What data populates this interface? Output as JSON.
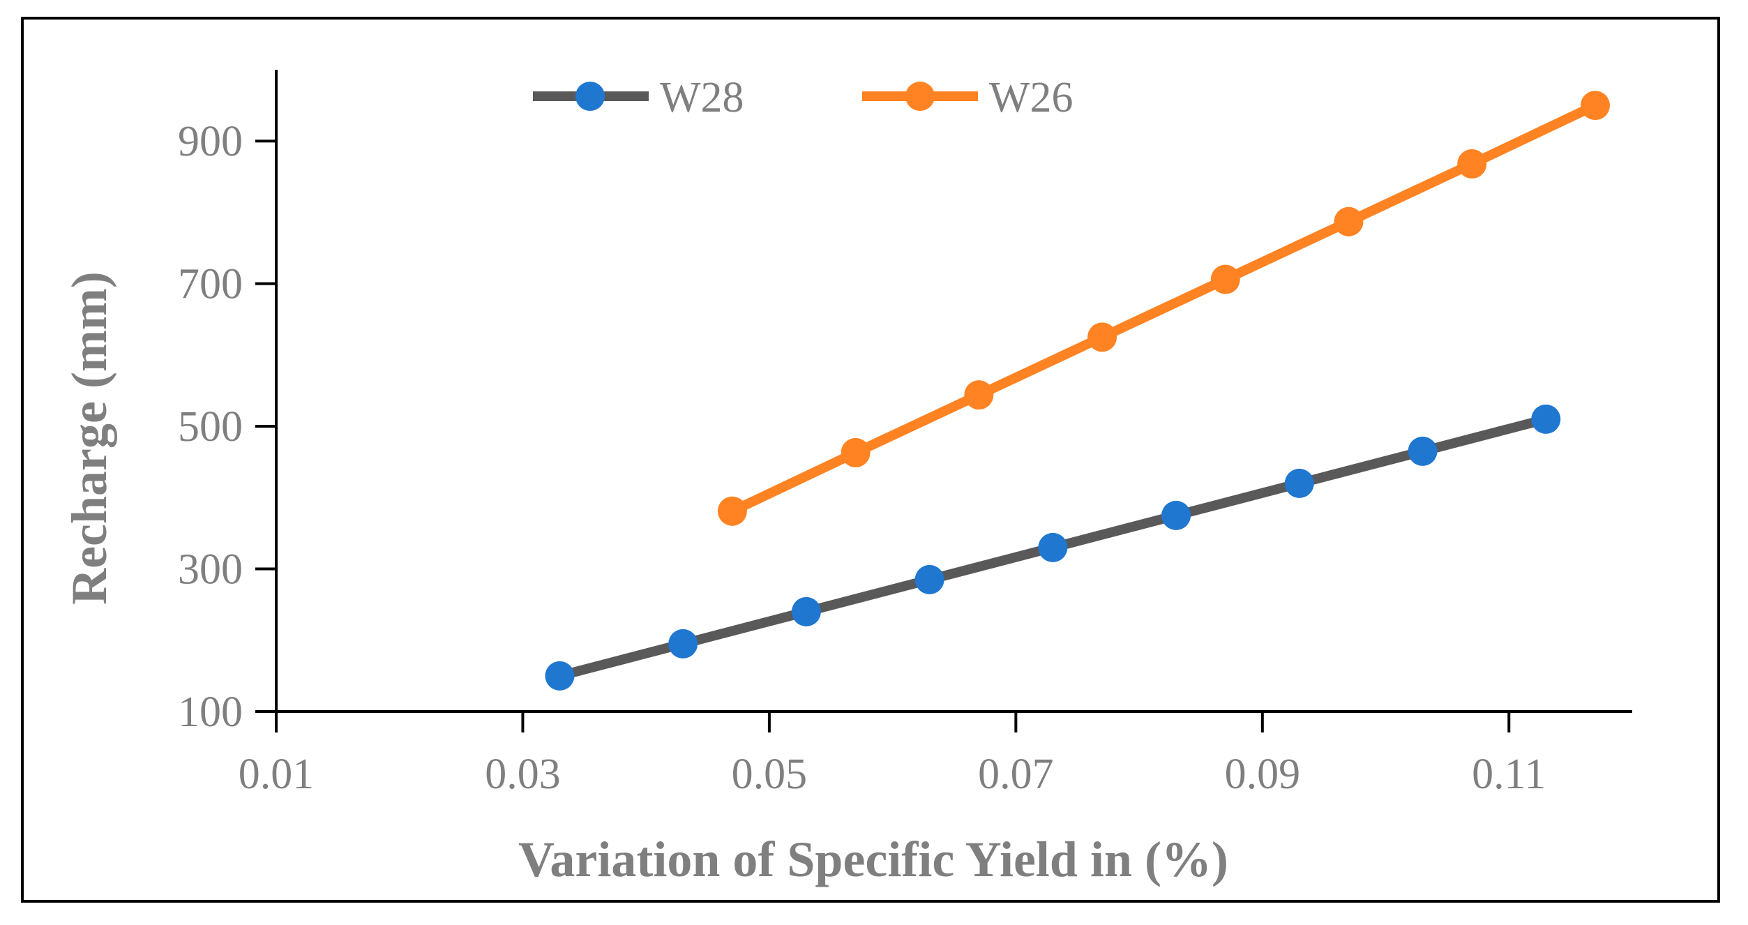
{
  "chart_data": {
    "type": "line",
    "title": "",
    "xlabel": "Variation of Specific Yield in (%)",
    "ylabel": "Recharge (mm)",
    "xlim": [
      0.01,
      0.12
    ],
    "ylim": [
      100,
      1000
    ],
    "xticks": [
      0.01,
      0.03,
      0.05,
      0.07,
      0.09,
      0.11
    ],
    "xtick_labels": [
      "0.01",
      "0.03",
      "0.05",
      "0.07",
      "0.09",
      "0.11"
    ],
    "yticks": [
      100,
      300,
      500,
      700,
      900
    ],
    "ytick_labels": [
      "100",
      "300",
      "500",
      "700",
      "900"
    ],
    "grid": false,
    "legend_position": "top",
    "series": [
      {
        "name": "W28",
        "line_color": "#595959",
        "marker_color": "#1f77d0",
        "x": [
          0.033,
          0.043,
          0.053,
          0.063,
          0.073,
          0.083,
          0.093,
          0.103,
          0.113
        ],
        "y": [
          150,
          195,
          240,
          285,
          330,
          375,
          420,
          465,
          510
        ]
      },
      {
        "name": "W26",
        "line_color": "#ff8322",
        "marker_color": "#ff8322",
        "x": [
          0.047,
          0.057,
          0.067,
          0.077,
          0.087,
          0.097,
          0.107,
          0.117
        ],
        "y": [
          381,
          463,
          544,
          625,
          706,
          787,
          868,
          950
        ]
      }
    ]
  }
}
